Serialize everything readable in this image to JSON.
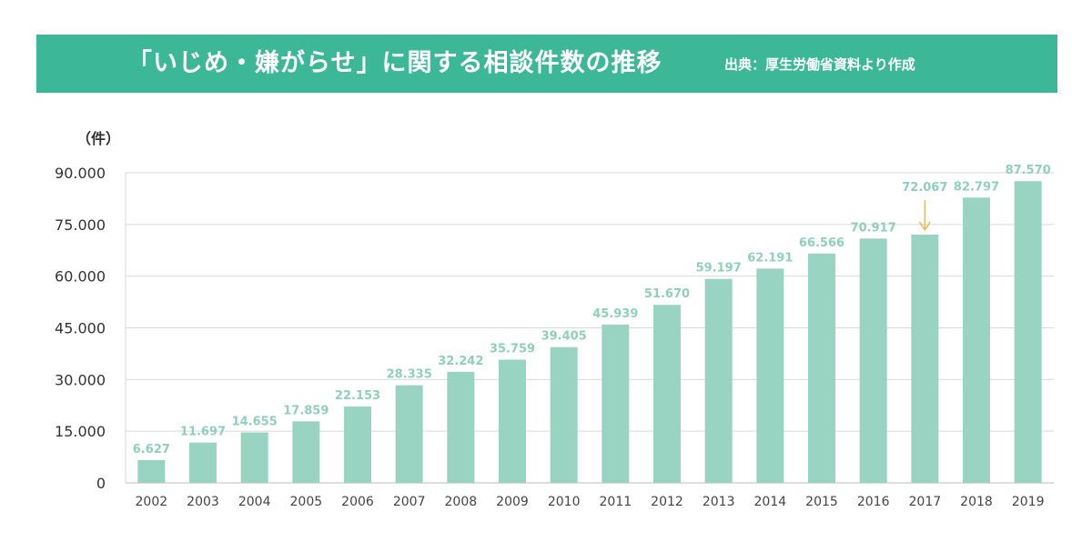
{
  "header": {
    "title": "「いじめ・嫌がらせ」に関する相談件数の推移",
    "source": "出典：厚生労働省資料より作成",
    "band_color": "#3cb898"
  },
  "chart_data": {
    "type": "bar",
    "unit_label": "（件）",
    "categories": [
      "2002",
      "2003",
      "2004",
      "2005",
      "2006",
      "2007",
      "2008",
      "2009",
      "2010",
      "2011",
      "2012",
      "2013",
      "2014",
      "2015",
      "2016",
      "2017",
      "2018",
      "2019"
    ],
    "values": [
      6627,
      11697,
      14655,
      17859,
      22153,
      28335,
      32242,
      35759,
      39405,
      45939,
      51670,
      59197,
      62191,
      66566,
      70917,
      72067,
      82797,
      87570
    ],
    "data_labels": [
      "6.627",
      "11.697",
      "14.655",
      "17.859",
      "22.153",
      "28.335",
      "32.242",
      "35.759",
      "39.405",
      "45.939",
      "51.670",
      "59.197",
      "62.191",
      "66.566",
      "70.917",
      "72.067",
      "82.797",
      "87.570"
    ],
    "ylim": [
      0,
      90000
    ],
    "yticks": [
      0,
      15000,
      30000,
      45000,
      60000,
      75000,
      90000
    ],
    "ytick_labels": [
      "0",
      "15.000",
      "30.000",
      "45.000",
      "60.000",
      "75.000",
      "90.000"
    ],
    "grid": true,
    "highlight": {
      "category": "2017",
      "marker": "down-arrow",
      "color": "#e8b860"
    },
    "bar_color": "#99d4c2",
    "label_color": "#8fcfbc"
  }
}
